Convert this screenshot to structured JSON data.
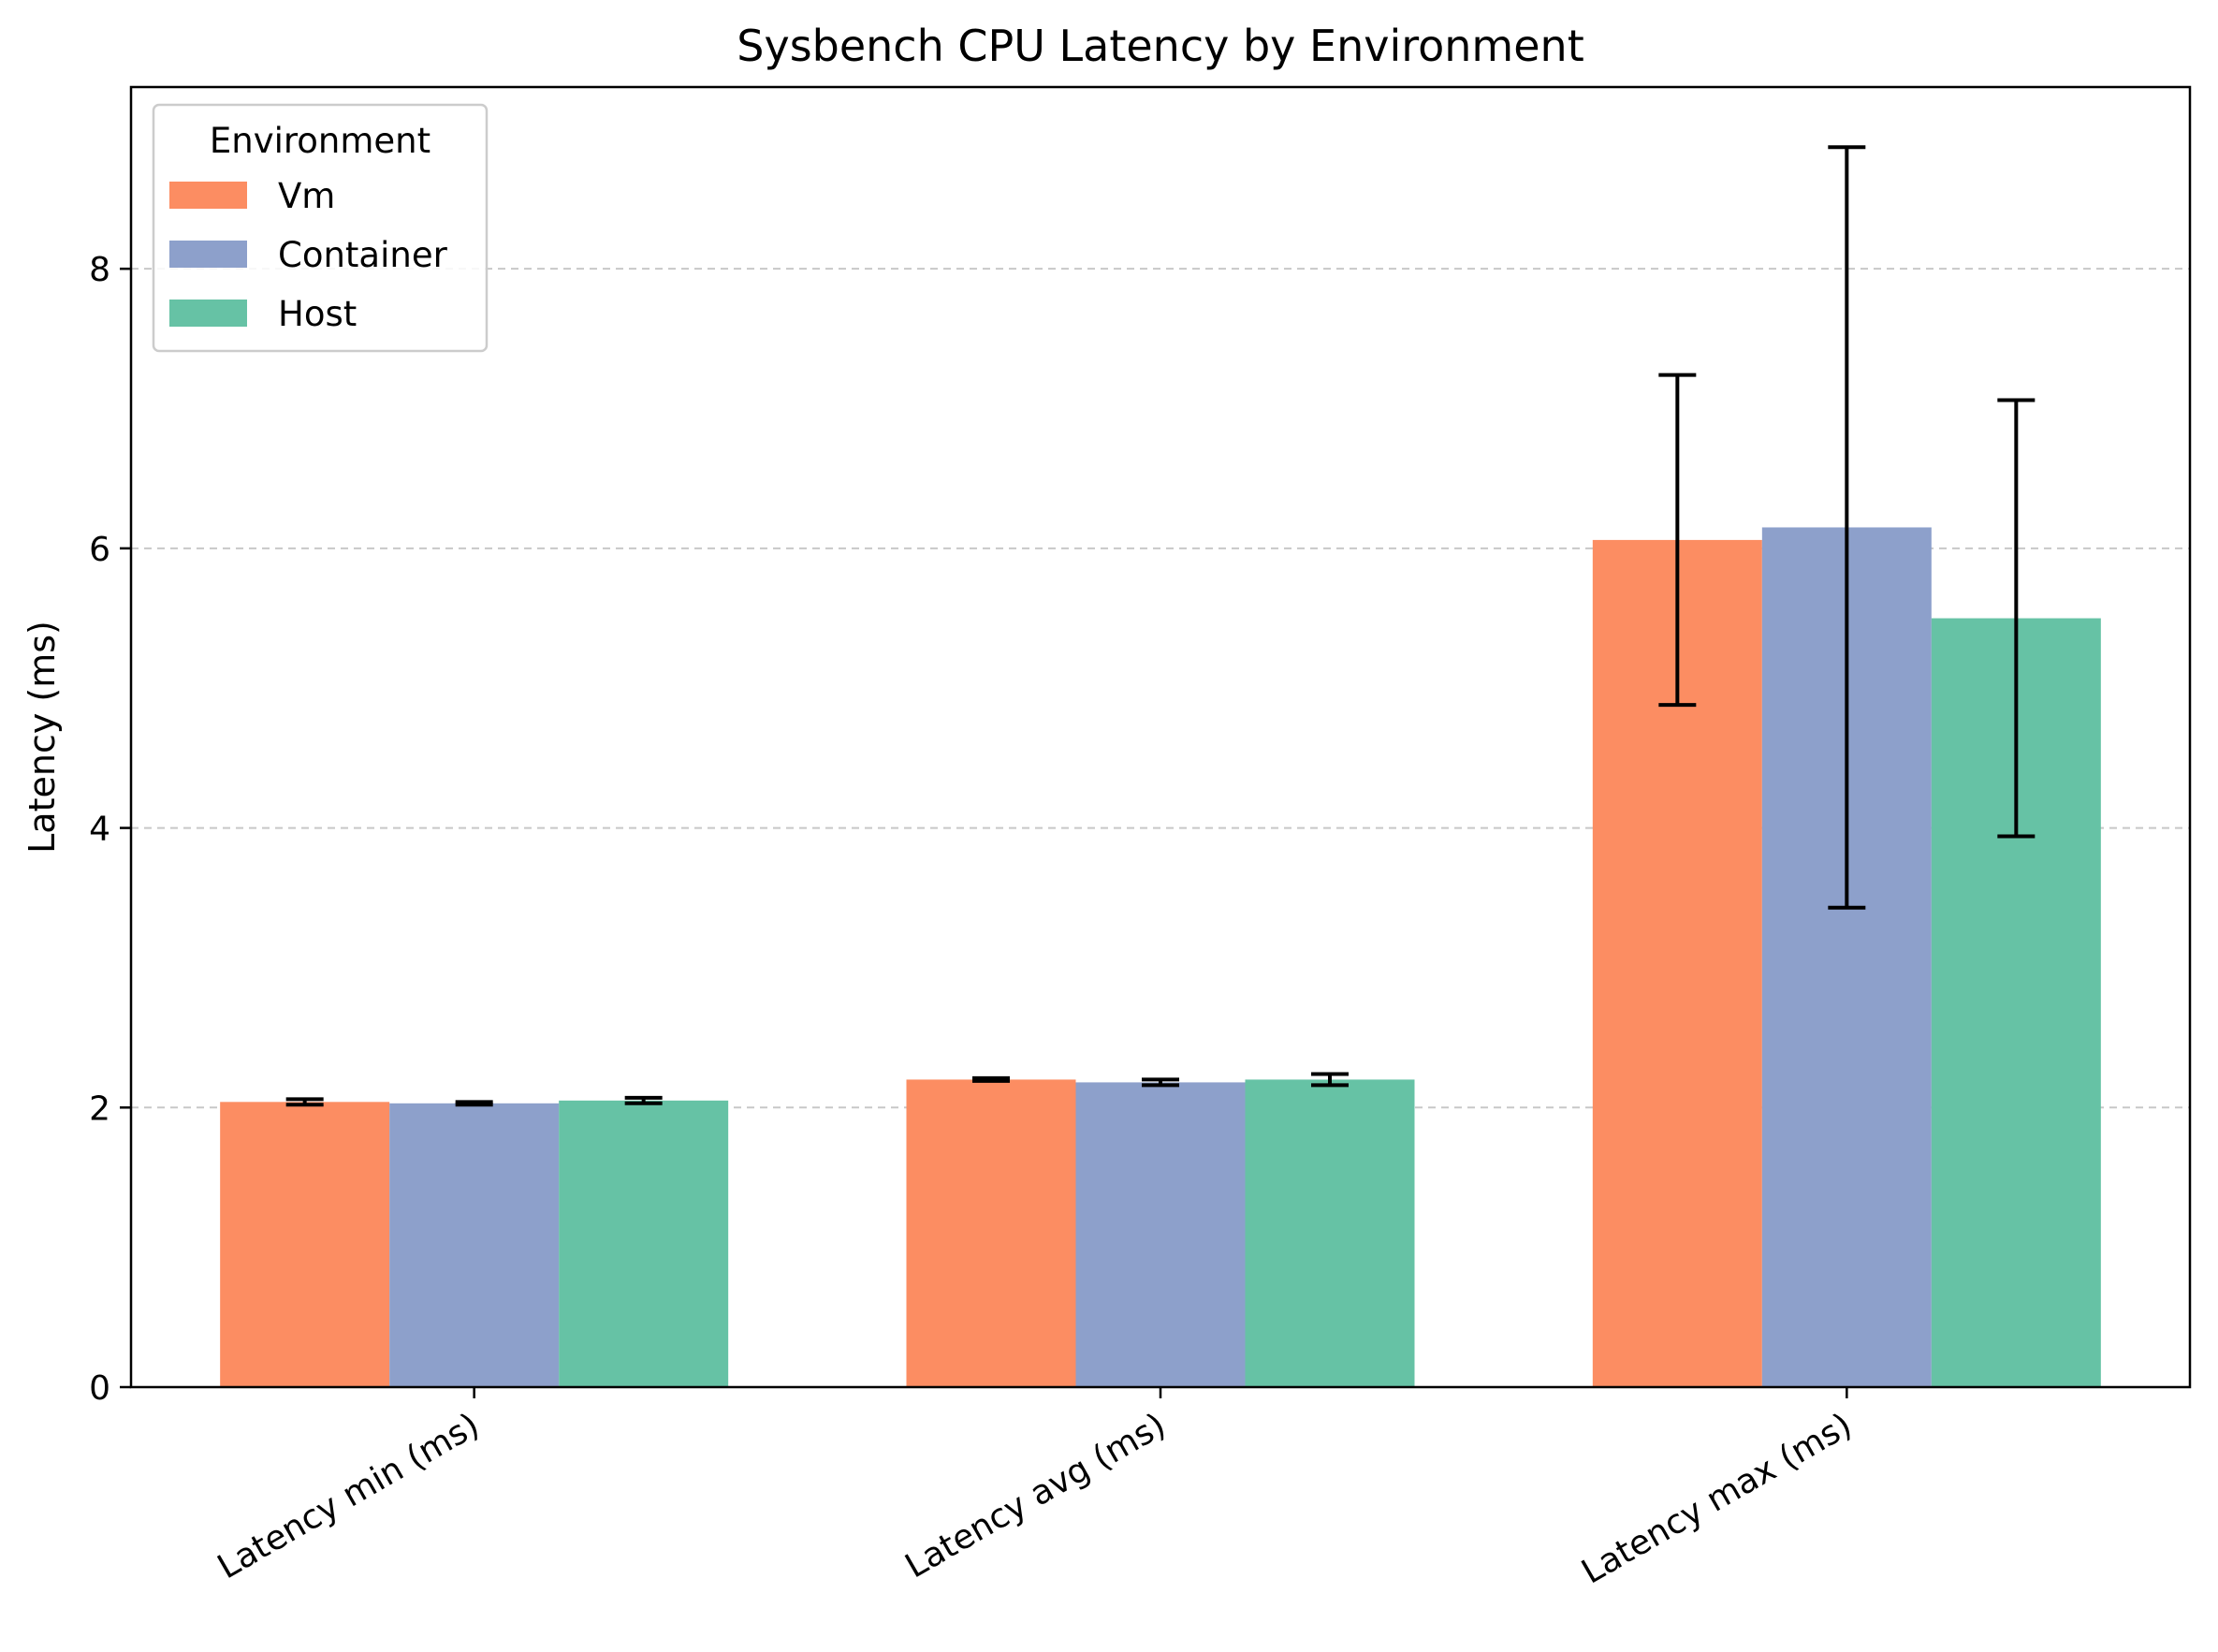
{
  "chart_data": {
    "type": "bar",
    "title": "Sysbench CPU Latency by Environment",
    "xlabel": "",
    "ylabel": "Latency (ms)",
    "categories": [
      "Latency min (ms)",
      "Latency avg (ms)",
      "Latency max (ms)"
    ],
    "ylim": [
      0,
      9.3
    ],
    "yticks": [
      0,
      2,
      4,
      6,
      8
    ],
    "grid": "y-dashed",
    "legend": {
      "title": "Environment",
      "position": "top-left"
    },
    "series": [
      {
        "name": "Vm",
        "color": "#fc8d62",
        "values": [
          2.04,
          2.2,
          6.06
        ],
        "errors": [
          0.02,
          0.01,
          1.18
        ]
      },
      {
        "name": "Container",
        "color": "#8da0cb",
        "values": [
          2.03,
          2.18,
          6.15
        ],
        "errors": [
          0.01,
          0.02,
          2.72
        ]
      },
      {
        "name": "Host",
        "color": "#66c2a5",
        "values": [
          2.05,
          2.2,
          5.5
        ],
        "errors": [
          0.02,
          0.04,
          1.56
        ]
      }
    ]
  }
}
